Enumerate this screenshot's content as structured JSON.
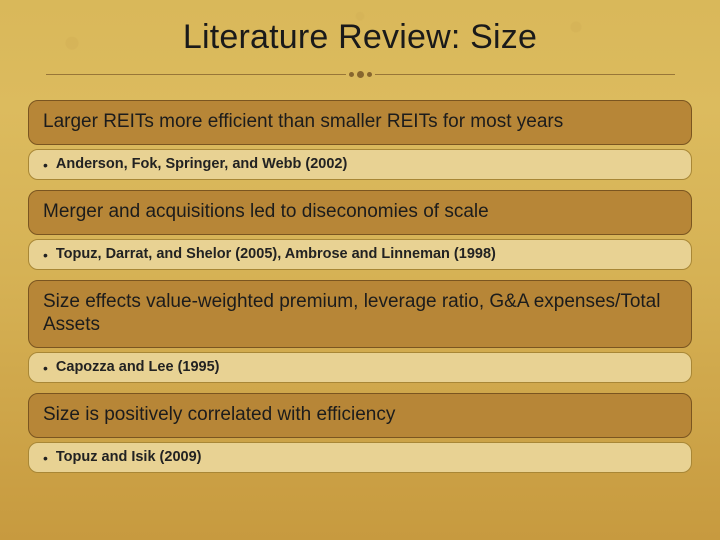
{
  "title": "Literature Review: Size",
  "colors": {
    "bg_top": "#d9b85a",
    "bg_bottom": "#c79a3f",
    "heading_fill": "#b78637",
    "heading_border": "#7a5520",
    "sub_fill": "#e8d293",
    "sub_border": "#a88736",
    "divider": "#6b4a1f",
    "text": "#1a1a1a"
  },
  "typography": {
    "title_fontsize": 34,
    "heading_fontsize": 19,
    "sub_fontsize": 14.5,
    "sub_fontweight": "bold"
  },
  "items": [
    {
      "heading": "Larger REITs more efficient than smaller REITs for most years",
      "sub": "Anderson, Fok, Springer, and Webb (2002)"
    },
    {
      "heading": "Merger and acquisitions led to diseconomies of scale",
      "sub": "Topuz, Darrat, and Shelor (2005), Ambrose and Linneman (1998)"
    },
    {
      "heading": "Size effects value-weighted premium, leverage ratio, G&A expenses/Total Assets",
      "sub": "Capozza and Lee (1995)"
    },
    {
      "heading": "Size is positively correlated with efficiency",
      "sub": "Topuz and Isik (2009)"
    }
  ]
}
